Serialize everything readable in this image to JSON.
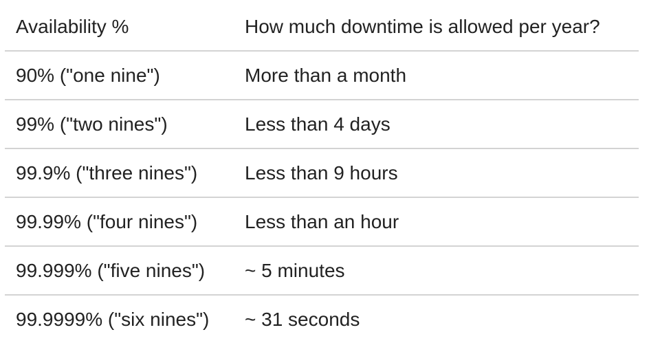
{
  "table": {
    "headers": [
      "Availability %",
      "How much downtime is allowed per year?"
    ],
    "rows": [
      [
        "90% (\"one nine\")",
        "More than a month"
      ],
      [
        "99% (\"two nines\")",
        "Less than 4 days"
      ],
      [
        "99.9% (\"three nines\")",
        "Less than 9 hours"
      ],
      [
        "99.99% (\"four nines\")",
        "Less than an hour"
      ],
      [
        "99.999% (\"five nines\")",
        "~ 5 minutes"
      ],
      [
        "99.9999% (\"six nines\")",
        "~ 31 seconds"
      ]
    ]
  }
}
